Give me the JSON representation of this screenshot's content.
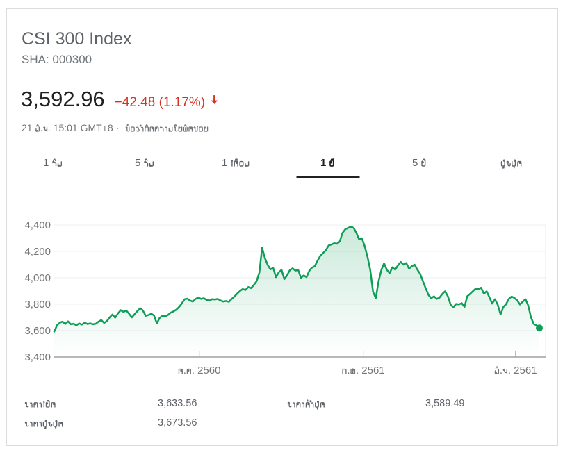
{
  "header": {
    "title": "CSI 300 Index",
    "exchange_symbol": "SHA: 000300",
    "price": "3,592.96",
    "change": "−42.48 (1.17%)",
    "timestamp": "21 มิ.ย. 15:01 GMT+8 ·",
    "disclaimer": "ข้อจำกัดความรับผิดชอบ"
  },
  "colors": {
    "green": "#0f9d58",
    "red": "#d93025",
    "axis_label": "#757575",
    "grid_light": "#efefef",
    "axis_dark": "#b7b7b7"
  },
  "tabs": [
    {
      "key": "1-day",
      "label": "1 วัน",
      "active": false
    },
    {
      "key": "5-day",
      "label": "5 วัน",
      "active": false
    },
    {
      "key": "1-month",
      "label": "1 เดือน",
      "active": false
    },
    {
      "key": "1-year",
      "label": "1 ปี",
      "active": true
    },
    {
      "key": "5-year",
      "label": "5 ปี",
      "active": false
    },
    {
      "key": "max",
      "label": "สูงสุด",
      "active": false
    }
  ],
  "chart_data": {
    "type": "area",
    "title": "CSI 300 Index, 1 year",
    "ylim": [
      3400,
      4400
    ],
    "yticks": [
      3400,
      3600,
      3800,
      4000,
      4200,
      4400
    ],
    "xticks": [
      {
        "label": "ต.ค. 2560",
        "t": 0.299
      },
      {
        "label": "ก.พ. 2561",
        "t": 0.637
      },
      {
        "label": "มิ.ย. 2561",
        "t": 0.951
      }
    ],
    "values": [
      3592,
      3640,
      3660,
      3668,
      3650,
      3670,
      3648,
      3652,
      3640,
      3655,
      3645,
      3660,
      3650,
      3655,
      3648,
      3652,
      3668,
      3680,
      3658,
      3672,
      3700,
      3722,
      3698,
      3730,
      3755,
      3742,
      3752,
      3728,
      3700,
      3725,
      3748,
      3770,
      3752,
      3712,
      3718,
      3728,
      3715,
      3655,
      3695,
      3712,
      3708,
      3718,
      3735,
      3745,
      3758,
      3778,
      3805,
      3838,
      3842,
      3828,
      3820,
      3840,
      3850,
      3840,
      3845,
      3832,
      3828,
      3838,
      3836,
      3840,
      3828,
      3820,
      3824,
      3818,
      3840,
      3858,
      3880,
      3900,
      3915,
      3908,
      3930,
      3922,
      3945,
      3975,
      4040,
      4228,
      4150,
      4098,
      4065,
      4075,
      4005,
      4042,
      4060,
      3990,
      4018,
      4058,
      4072,
      4055,
      4060,
      4000,
      4018,
      4005,
      4052,
      4078,
      4088,
      4130,
      4168,
      4188,
      4210,
      4245,
      4252,
      4262,
      4258,
      4275,
      4340,
      4368,
      4378,
      4388,
      4378,
      4340,
      4290,
      4300,
      4240,
      4160,
      4060,
      3895,
      3845,
      3975,
      4060,
      4110,
      4060,
      4035,
      4080,
      4062,
      4095,
      4120,
      4100,
      4112,
      4070,
      4088,
      4100,
      4062,
      4030,
      3975,
      3920,
      3870,
      3845,
      3860,
      3840,
      3850,
      3878,
      3898,
      3860,
      3795,
      3778,
      3802,
      3798,
      3808,
      3780,
      3860,
      3878,
      3898,
      3918,
      3915,
      3925,
      3880,
      3898,
      3852,
      3805,
      3838,
      3795,
      3722,
      3778,
      3800,
      3840,
      3858,
      3848,
      3830,
      3798,
      3820,
      3838,
      3790,
      3700,
      3650,
      3640,
      3620
    ]
  },
  "stats": [
    {
      "key": "open",
      "label": "ราคาเปิด",
      "value": "3,633.56"
    },
    {
      "key": "high",
      "label": "ราคาสูงสุด",
      "value": "3,673.56"
    },
    {
      "key": "low",
      "label": "ราคาต่ำสุด",
      "value": "3,589.49"
    }
  ]
}
